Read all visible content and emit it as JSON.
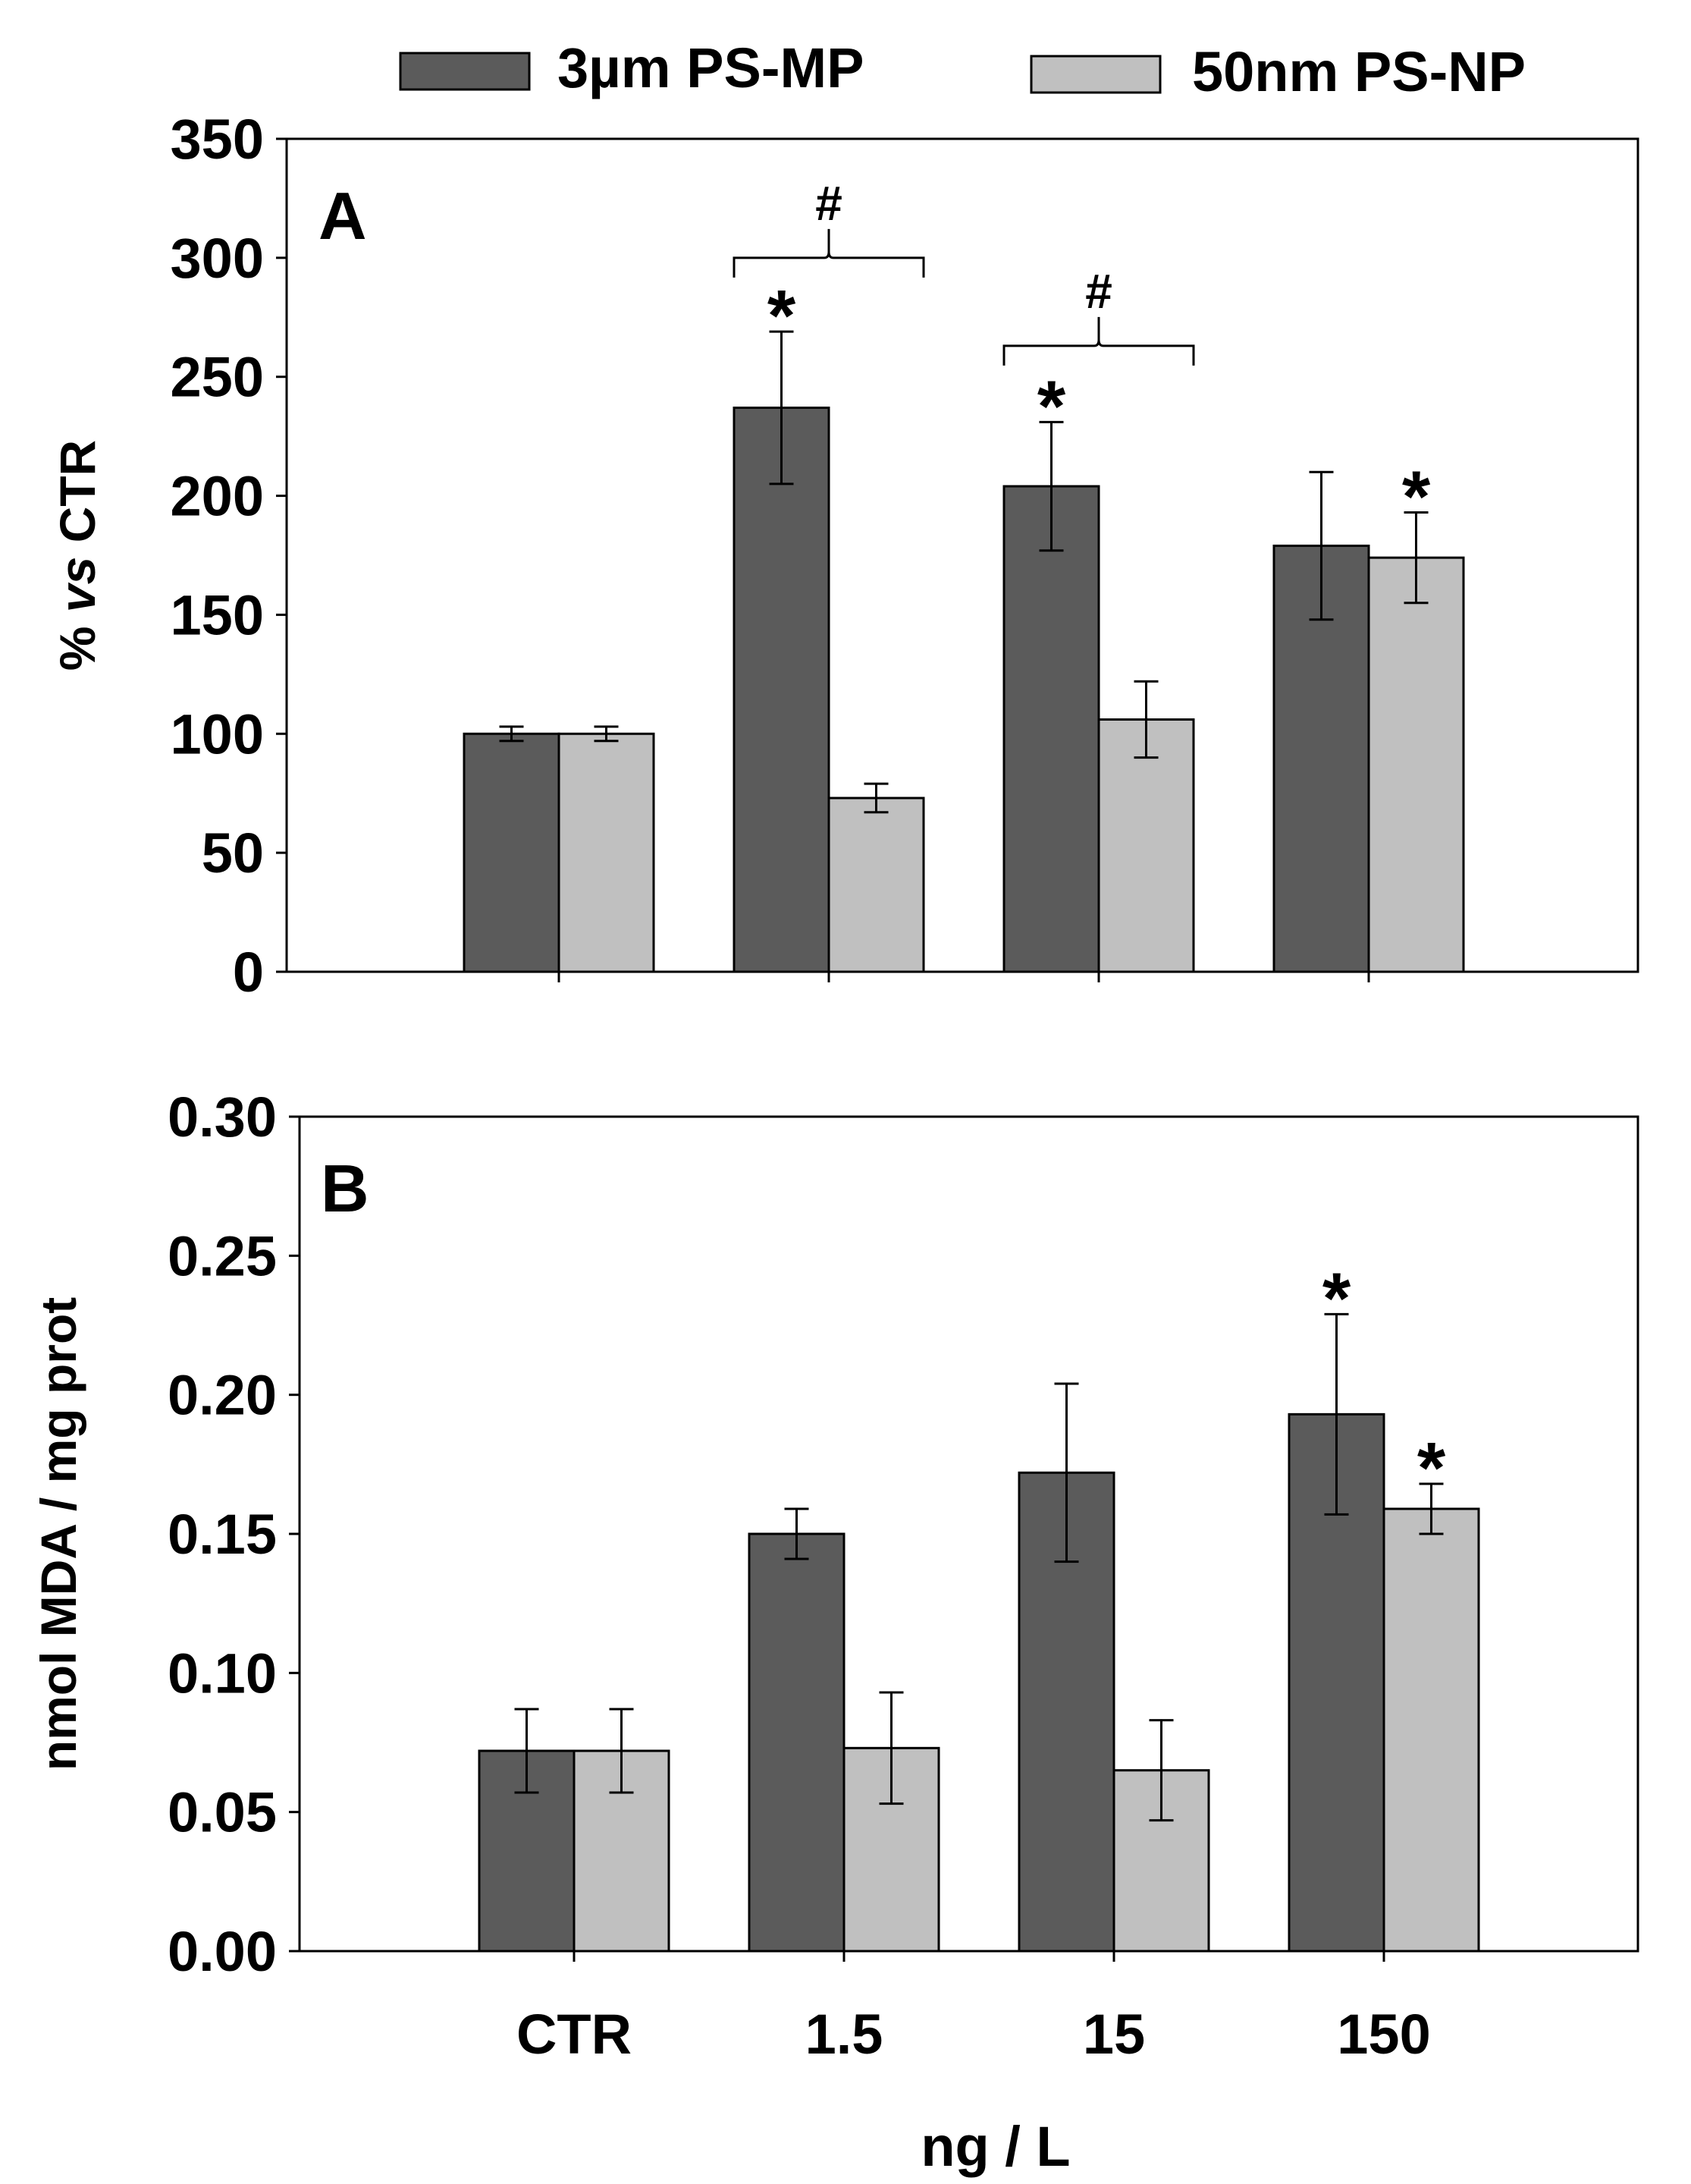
{
  "legend": {
    "mp_label": "3µm PS-MP",
    "np_label": "50nm PS-NP"
  },
  "colors": {
    "mp": "#5b5b5b",
    "np": "#c0c0c0",
    "axis": "#000000"
  },
  "xlabel": "ng / L",
  "chart_data": [
    {
      "type": "bar",
      "panel_label": "A",
      "title": "",
      "categories": [
        "CTR",
        "1.5",
        "15",
        "150"
      ],
      "ylabel_parts": [
        "% ",
        "vs",
        " CTR"
      ],
      "ylim": [
        0,
        350
      ],
      "yticks": [
        "0",
        "50",
        "100",
        "150",
        "200",
        "250",
        "300",
        "350"
      ],
      "ytick_values": [
        0,
        50,
        100,
        150,
        200,
        250,
        300,
        350
      ],
      "series": [
        {
          "name": "3µm PS-MP",
          "values": [
            100,
            237,
            204,
            179
          ],
          "errors": [
            3,
            32,
            27,
            31
          ],
          "stars": [
            "",
            "*",
            "*",
            ""
          ]
        },
        {
          "name": "50nm PS-NP",
          "values": [
            100,
            73,
            106,
            174
          ],
          "errors": [
            3,
            6,
            16,
            19
          ],
          "stars": [
            "",
            "",
            "",
            "*"
          ]
        }
      ],
      "brackets": [
        {
          "category_index": 1,
          "y": 300,
          "symbol": "#"
        },
        {
          "category_index": 2,
          "y": 263,
          "symbol": "#"
        }
      ]
    },
    {
      "type": "bar",
      "panel_label": "B",
      "title": "",
      "categories": [
        "CTR",
        "1.5",
        "15",
        "150"
      ],
      "ylabel_parts": [
        "nmol MDA / mg prot"
      ],
      "ylim": [
        0,
        0.3
      ],
      "yticks": [
        "0.00",
        "0.05",
        "0.10",
        "0.15",
        "0.20",
        "0.25",
        "0.30"
      ],
      "ytick_values": [
        0,
        0.05,
        0.1,
        0.15,
        0.2,
        0.25,
        0.3
      ],
      "series": [
        {
          "name": "3µm PS-MP",
          "values": [
            0.072,
            0.15,
            0.172,
            0.193
          ],
          "errors": [
            0.015,
            0.009,
            0.032,
            0.036
          ],
          "stars": [
            "",
            "",
            "",
            "*"
          ]
        },
        {
          "name": "50nm PS-NP",
          "values": [
            0.072,
            0.073,
            0.065,
            0.159
          ],
          "errors": [
            0.015,
            0.02,
            0.018,
            0.009
          ],
          "stars": [
            "",
            "",
            "",
            "*"
          ]
        }
      ],
      "brackets": []
    }
  ]
}
